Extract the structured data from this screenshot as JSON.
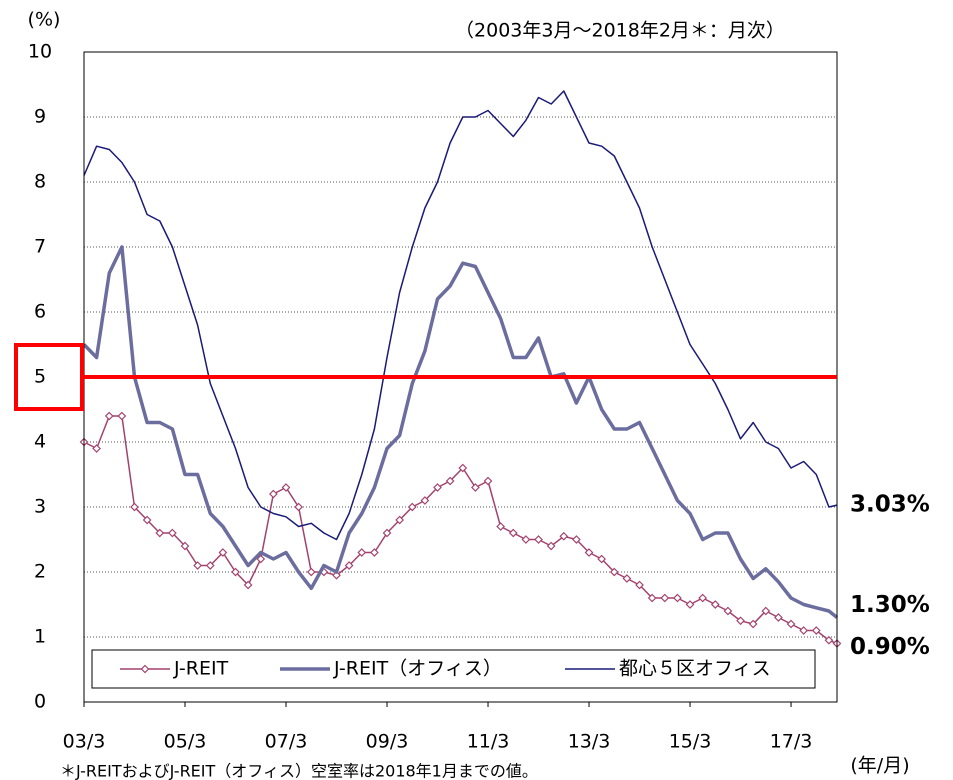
{
  "chart_data": {
    "type": "line",
    "subtitle": "（2003年3月～2018年2月＊：月次）",
    "y_label": "(%)",
    "x_label": "(年/月)",
    "footnote": "＊J-REITおよびJ-REIT（オフィス）空室率は2018年1月までの値。",
    "x": [
      2003.17,
      2003.42,
      2003.67,
      2003.92,
      2004.17,
      2004.42,
      2004.67,
      2004.92,
      2005.17,
      2005.42,
      2005.67,
      2005.92,
      2006.17,
      2006.42,
      2006.67,
      2006.92,
      2007.17,
      2007.42,
      2007.67,
      2007.92,
      2008.17,
      2008.42,
      2008.67,
      2008.92,
      2009.17,
      2009.42,
      2009.67,
      2009.92,
      2010.17,
      2010.42,
      2010.67,
      2010.92,
      2011.17,
      2011.42,
      2011.67,
      2011.92,
      2012.17,
      2012.42,
      2012.67,
      2012.92,
      2013.17,
      2013.42,
      2013.67,
      2013.92,
      2014.17,
      2014.42,
      2014.67,
      2014.92,
      2015.17,
      2015.42,
      2015.67,
      2015.92,
      2016.17,
      2016.42,
      2016.67,
      2016.92,
      2017.17,
      2017.42,
      2017.67,
      2017.92,
      2018.08
    ],
    "series": [
      {
        "name": "J-REIT",
        "color": "#a3416e",
        "marker": "diamond",
        "width": 1.5,
        "end_label": "0.90%",
        "values": [
          4.0,
          3.9,
          4.4,
          4.4,
          3.0,
          2.8,
          2.6,
          2.6,
          2.4,
          2.1,
          2.1,
          2.3,
          2.0,
          1.8,
          2.2,
          3.2,
          3.3,
          3.0,
          2.0,
          2.0,
          1.95,
          2.1,
          2.3,
          2.3,
          2.6,
          2.8,
          3.0,
          3.1,
          3.3,
          3.4,
          3.6,
          3.3,
          3.4,
          2.7,
          2.6,
          2.5,
          2.5,
          2.4,
          2.55,
          2.5,
          2.3,
          2.2,
          2.0,
          1.9,
          1.8,
          1.6,
          1.6,
          1.6,
          1.5,
          1.6,
          1.5,
          1.4,
          1.25,
          1.2,
          1.4,
          1.3,
          1.2,
          1.1,
          1.1,
          0.95,
          0.9
        ]
      },
      {
        "name": "J-REIT（オフィス）",
        "color": "#6b6d9e",
        "width": 3.5,
        "end_label": "1.30%",
        "values": [
          5.5,
          5.3,
          6.6,
          7.0,
          5.0,
          4.3,
          4.3,
          4.2,
          3.5,
          3.5,
          2.9,
          2.7,
          2.4,
          2.1,
          2.3,
          2.2,
          2.3,
          2.0,
          1.75,
          2.1,
          2.0,
          2.6,
          2.9,
          3.3,
          3.9,
          4.1,
          4.9,
          5.4,
          6.2,
          6.4,
          6.75,
          6.7,
          6.3,
          5.9,
          5.3,
          5.3,
          5.6,
          5.0,
          5.05,
          4.6,
          5.0,
          4.5,
          4.2,
          4.2,
          4.3,
          3.9,
          3.5,
          3.1,
          2.9,
          2.5,
          2.6,
          2.6,
          2.2,
          1.9,
          2.05,
          1.85,
          1.6,
          1.5,
          1.45,
          1.4,
          1.3
        ]
      },
      {
        "name": "都心５区オフィス",
        "color": "#1a1a78",
        "width": 1.5,
        "end_label": "3.03%",
        "values": [
          8.1,
          8.55,
          8.5,
          8.3,
          8.0,
          7.5,
          7.4,
          7.0,
          6.4,
          5.8,
          4.9,
          4.4,
          3.9,
          3.3,
          3.0,
          2.9,
          2.85,
          2.7,
          2.75,
          2.6,
          2.5,
          2.9,
          3.5,
          4.2,
          5.3,
          6.3,
          7.0,
          7.6,
          8.0,
          8.6,
          9.0,
          9.0,
          9.1,
          8.9,
          8.7,
          8.95,
          9.3,
          9.2,
          9.4,
          9.0,
          8.6,
          8.55,
          8.4,
          8.0,
          7.6,
          7.0,
          6.5,
          6.0,
          5.5,
          5.2,
          4.9,
          4.5,
          4.05,
          4.3,
          4.0,
          3.9,
          3.6,
          3.7,
          3.5,
          3.0,
          3.03
        ]
      }
    ],
    "reference_line": {
      "value": 5,
      "color": "#ff0000"
    },
    "xlim": [
      2003.17,
      2018.08
    ],
    "xticks": [
      {
        "value": 2003.17,
        "label": "03/3"
      },
      {
        "value": 2005.17,
        "label": "05/3"
      },
      {
        "value": 2007.17,
        "label": "07/3"
      },
      {
        "value": 2009.17,
        "label": "09/3"
      },
      {
        "value": 2011.17,
        "label": "11/3"
      },
      {
        "value": 2013.17,
        "label": "13/3"
      },
      {
        "value": 2015.17,
        "label": "15/3"
      },
      {
        "value": 2017.17,
        "label": "17/3"
      }
    ],
    "ylim": [
      0,
      10
    ],
    "yticks": [
      0,
      1,
      2,
      3,
      4,
      5,
      6,
      7,
      8,
      9,
      10
    ],
    "grid": true
  }
}
